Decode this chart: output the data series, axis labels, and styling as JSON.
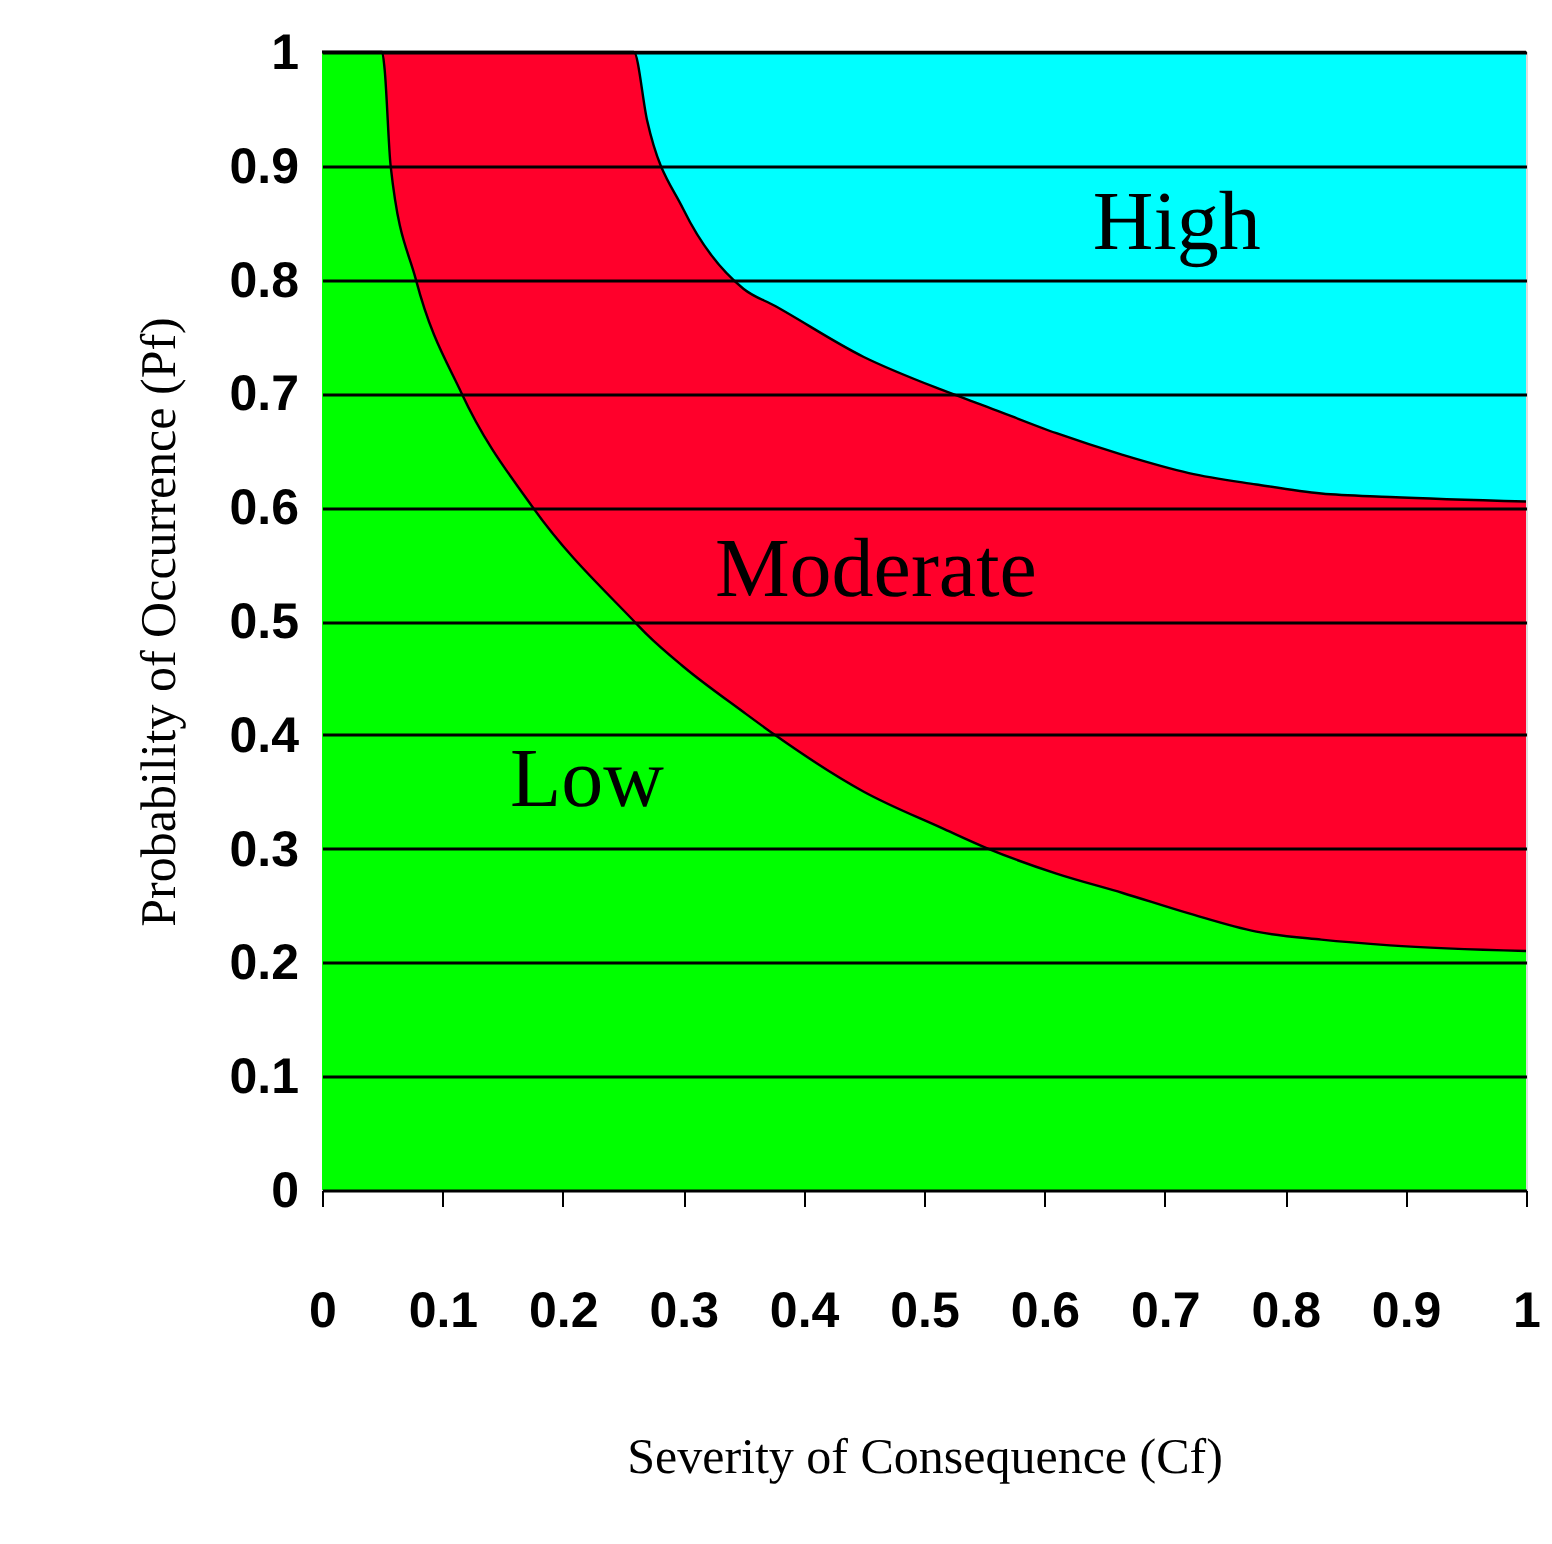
{
  "chart_data": {
    "type": "area",
    "stacked": true,
    "xlabel": "Severity of Consequence (Cf)",
    "ylabel": "Probability of Occurrence (Pf)",
    "x": [
      0,
      0.05,
      0.052,
      0.057,
      0.078,
      0.116,
      0.175,
      0.259,
      0.27,
      0.3,
      0.35,
      0.376,
      0.45,
      0.515,
      0.553,
      0.61,
      0.665,
      0.72,
      0.776,
      0.83,
      0.887,
      1.0
    ],
    "series": [
      {
        "color": "#00ff00",
        "values": [
          1,
          1,
          0.985,
          0.9,
          0.8,
          0.7,
          0.6,
          0.5,
          0.488,
          0.46,
          0.42,
          0.4,
          0.35,
          0.318,
          0.3,
          0.278,
          0.261,
          0.243,
          0.227,
          0.22,
          0.215,
          0.21
        ]
      },
      {
        "color": "#ff002b",
        "values": [
          0,
          0,
          0.015,
          0.1,
          0.2,
          0.3,
          0.4,
          0.5,
          0.452,
          0.402,
          0.372,
          0.377,
          0.382,
          0.385,
          0.388,
          0.387,
          0.385,
          0.387,
          0.393,
          0.392,
          0.394,
          0.395
        ]
      },
      {
        "color": "#00ffff",
        "values": [
          0,
          0,
          0,
          0,
          0,
          0,
          0,
          0,
          0.06,
          0.138,
          0.208,
          0.223,
          0.268,
          0.297,
          0.312,
          0.335,
          0.354,
          0.37,
          0.38,
          0.388,
          0.391,
          0.395
        ]
      }
    ],
    "annotations": [
      "High",
      "Moderate",
      "Low"
    ],
    "xlim": [
      0,
      1
    ],
    "ylim": [
      0,
      1
    ],
    "xticks": [
      0,
      0.1,
      0.2,
      0.3,
      0.4,
      0.5,
      0.6,
      0.7,
      0.8,
      0.9,
      1
    ],
    "yticks": [
      0,
      0.1,
      0.2,
      0.3,
      0.4,
      0.5,
      0.6,
      0.7,
      0.8,
      0.9,
      1
    ],
    "grid": "y",
    "legend": false
  }
}
